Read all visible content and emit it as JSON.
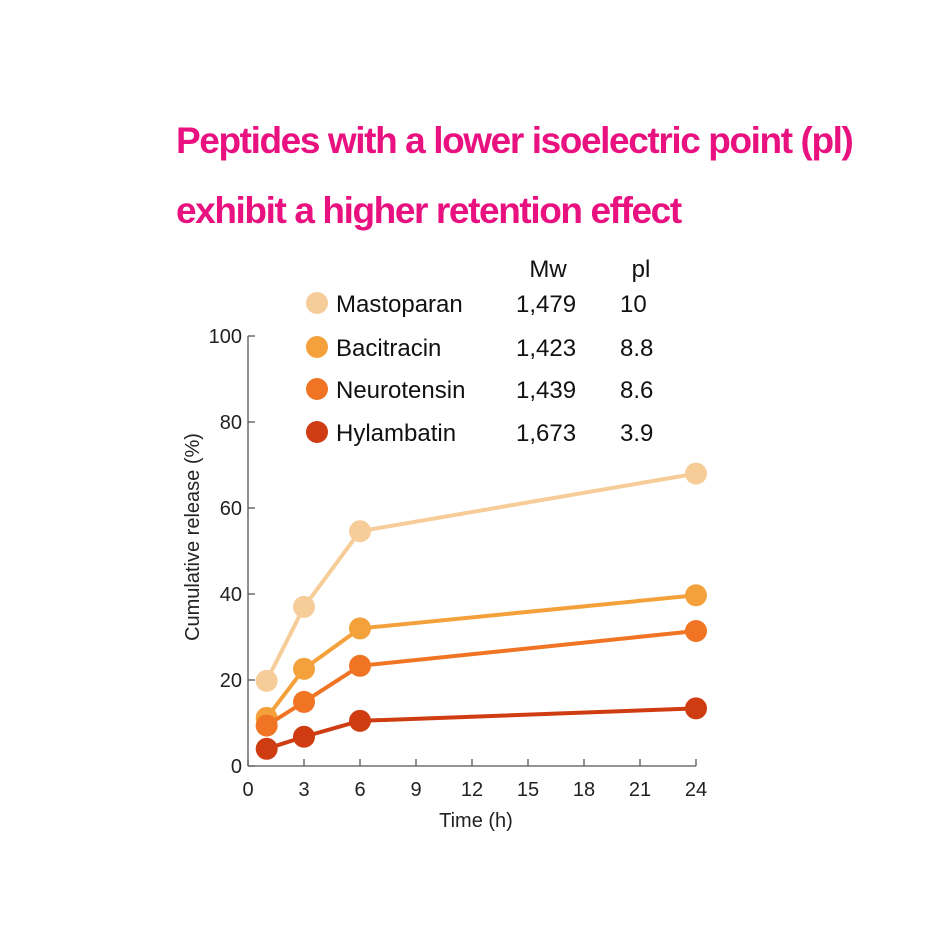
{
  "title": {
    "line1": "Peptides with a lower isoelectric point (pl)",
    "line2": "exhibit a higher retention effect"
  },
  "legend": {
    "column_headers": [
      "Mw",
      "pl"
    ],
    "entries": [
      {
        "name": "Mastoparan",
        "mw": "1,479",
        "pi": "10"
      },
      {
        "name": "Bacitracin",
        "mw": "1,423",
        "pi": "8.8"
      },
      {
        "name": "Neurotensin",
        "mw": "1,439",
        "pi": "8.6"
      },
      {
        "name": "Hylambatin",
        "mw": "1,673",
        "pi": "3.9"
      }
    ]
  },
  "chart_data": {
    "type": "line",
    "xlabel": "Time (h)",
    "ylabel": "Cumulative release (%)",
    "xlim": [
      0,
      24
    ],
    "ylim": [
      0,
      100
    ],
    "xticks": [
      0,
      3,
      6,
      9,
      12,
      15,
      18,
      21,
      24
    ],
    "yticks": [
      0,
      20,
      40,
      60,
      80,
      100
    ],
    "x": [
      1,
      3,
      6,
      24
    ],
    "grid": false,
    "legend_position": "top-left",
    "series": [
      {
        "name": "Mastoparan",
        "color": "#f6cc98",
        "values": [
          19.8,
          37,
          54.6,
          68
        ]
      },
      {
        "name": "Bacitracin",
        "color": "#f4a13c",
        "values": [
          11.2,
          22.6,
          32,
          39.7
        ]
      },
      {
        "name": "Neurotensin",
        "color": "#f07424",
        "values": [
          9.4,
          14.9,
          23.3,
          31.4
        ]
      },
      {
        "name": "Hylambatin",
        "color": "#cf3c11",
        "values": [
          4,
          6.8,
          10.5,
          13.4
        ]
      }
    ]
  }
}
